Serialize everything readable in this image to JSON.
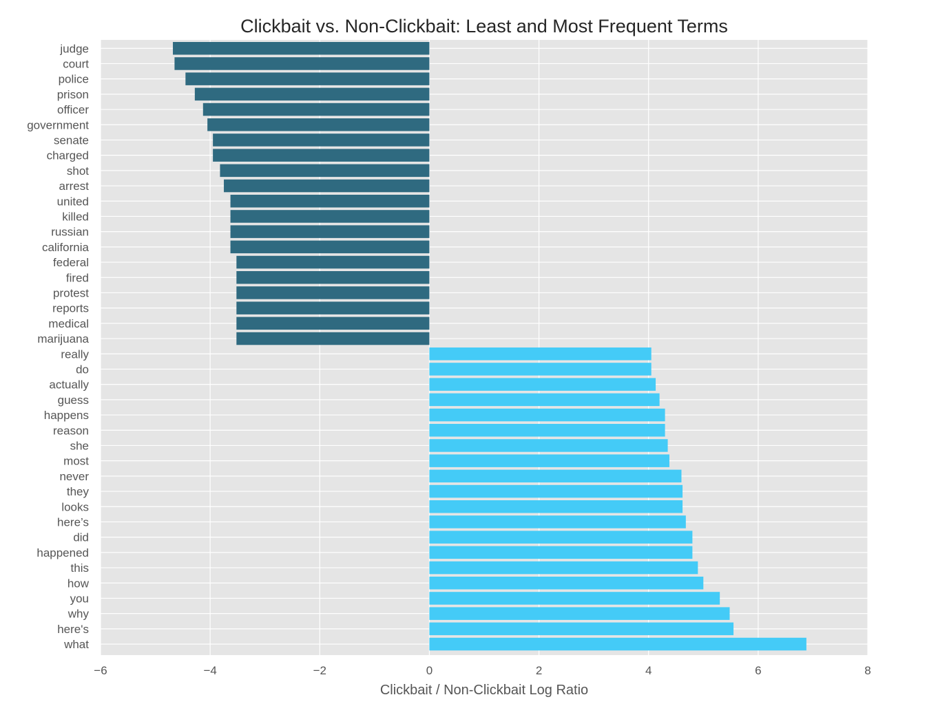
{
  "chart_data": {
    "type": "bar",
    "orientation": "horizontal",
    "title": "Clickbait vs. Non-Clickbait: Least and Most Frequent Terms",
    "xlabel": "Clickbait / Non-Clickbait Log Ratio",
    "ylabel": "",
    "xlim": [
      -6,
      8
    ],
    "xticks": [
      -6,
      -4,
      -2,
      0,
      2,
      4,
      6,
      8
    ],
    "xtick_labels": [
      "−6",
      "−4",
      "−2",
      "0",
      "2",
      "4",
      "6",
      "8"
    ],
    "grid": true,
    "categories": [
      "judge",
      "court",
      "police",
      "prison",
      "officer",
      "government",
      "senate",
      "charged",
      "shot",
      "arrest",
      "united",
      "killed",
      "russian",
      "california",
      "federal",
      "fired",
      "protest",
      "reports",
      "medical",
      "marijuana",
      "really",
      "do",
      "actually",
      "guess",
      "happens",
      "reason",
      "she",
      "most",
      "never",
      "they",
      "looks",
      "here’s",
      "did",
      "happened",
      "this",
      "how",
      "you",
      "why",
      "here's",
      "what"
    ],
    "values": [
      -4.68,
      -4.65,
      -4.45,
      -4.28,
      -4.13,
      -4.05,
      -3.95,
      -3.95,
      -3.82,
      -3.75,
      -3.63,
      -3.63,
      -3.63,
      -3.63,
      -3.52,
      -3.52,
      -3.52,
      -3.52,
      -3.52,
      -3.52,
      4.05,
      4.05,
      4.13,
      4.2,
      4.3,
      4.3,
      4.35,
      4.38,
      4.6,
      4.62,
      4.62,
      4.68,
      4.8,
      4.8,
      4.9,
      5.0,
      5.3,
      5.48,
      5.55,
      6.88
    ],
    "colors": {
      "negative": "#2f6a80",
      "positive": "#44cbf7",
      "plot_background": "#e5e5e5",
      "grid": "#ffffff",
      "text": "#555555",
      "title": "#262626"
    }
  }
}
